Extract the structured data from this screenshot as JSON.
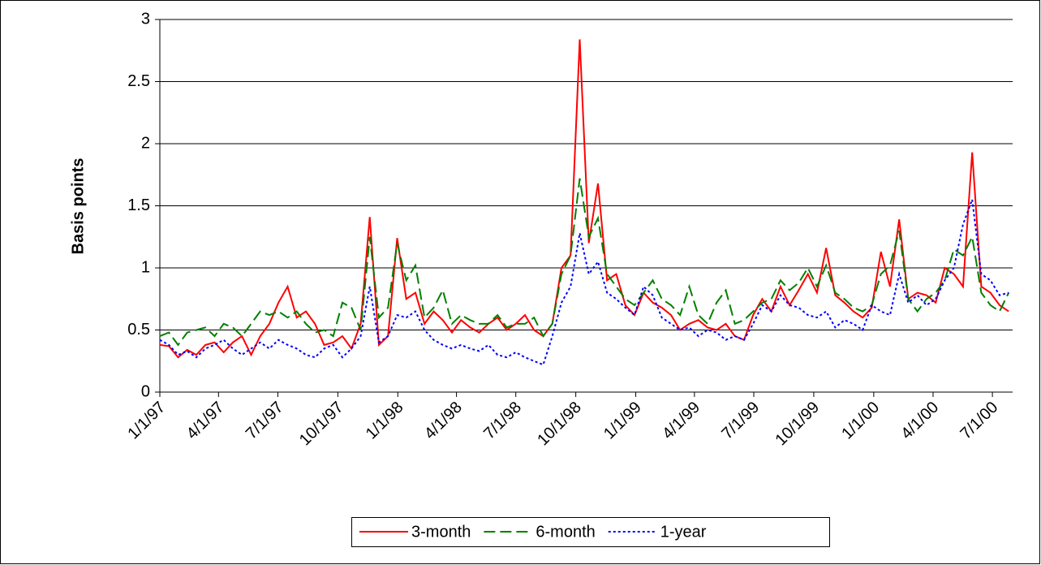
{
  "chart_data": {
    "type": "line",
    "y_label": "Basis points",
    "x": [
      "1/1/97",
      "1/15/97",
      "1/29/97",
      "2/12/97",
      "2/26/97",
      "3/12/97",
      "3/26/97",
      "4/9/97",
      "4/23/97",
      "5/7/97",
      "5/21/97",
      "6/4/97",
      "6/18/97",
      "7/2/97",
      "7/16/97",
      "7/30/97",
      "8/13/97",
      "8/27/97",
      "9/10/97",
      "9/24/97",
      "10/8/97",
      "10/22/97",
      "11/5/97",
      "11/19/97",
      "12/3/97",
      "12/17/97",
      "12/31/97",
      "1/14/98",
      "1/28/98",
      "2/11/98",
      "2/25/98",
      "3/11/98",
      "3/25/98",
      "4/8/98",
      "4/22/98",
      "5/6/98",
      "5/20/98",
      "6/3/98",
      "6/17/98",
      "7/1/98",
      "7/15/98",
      "7/29/98",
      "8/12/98",
      "8/26/98",
      "9/9/98",
      "9/23/98",
      "10/7/98",
      "10/21/98",
      "11/4/98",
      "11/18/98",
      "12/2/98",
      "12/16/98",
      "12/30/98",
      "1/13/99",
      "1/27/99",
      "2/10/99",
      "2/24/99",
      "3/10/99",
      "3/24/99",
      "4/7/99",
      "4/21/99",
      "5/5/99",
      "5/19/99",
      "6/2/99",
      "6/16/99",
      "6/30/99",
      "7/14/99",
      "7/28/99",
      "8/11/99",
      "8/25/99",
      "9/8/99",
      "9/22/99",
      "10/6/99",
      "10/20/99",
      "11/3/99",
      "11/17/99",
      "12/1/99",
      "12/15/99",
      "12/29/99",
      "1/12/00",
      "1/26/00",
      "2/9/00",
      "2/23/00",
      "3/8/00",
      "3/22/00",
      "4/5/00",
      "4/19/00",
      "5/3/00",
      "5/17/00",
      "5/31/00",
      "6/14/00",
      "6/28/00",
      "7/12/00",
      "7/26/00"
    ],
    "series": [
      {
        "name": "3-month",
        "color": "#ff0000",
        "style": "solid",
        "values": [
          0.38,
          0.37,
          0.28,
          0.34,
          0.3,
          0.38,
          0.4,
          0.32,
          0.4,
          0.45,
          0.3,
          0.45,
          0.55,
          0.72,
          0.85,
          0.6,
          0.65,
          0.55,
          0.38,
          0.4,
          0.45,
          0.35,
          0.55,
          1.41,
          0.38,
          0.45,
          1.24,
          0.75,
          0.8,
          0.55,
          0.65,
          0.58,
          0.48,
          0.58,
          0.52,
          0.48,
          0.55,
          0.6,
          0.5,
          0.55,
          0.62,
          0.5,
          0.45,
          0.55,
          1.0,
          1.1,
          2.84,
          1.2,
          1.68,
          0.9,
          0.95,
          0.7,
          0.62,
          0.8,
          0.72,
          0.68,
          0.62,
          0.5,
          0.55,
          0.58,
          0.52,
          0.5,
          0.55,
          0.45,
          0.42,
          0.62,
          0.75,
          0.65,
          0.85,
          0.7,
          0.82,
          0.95,
          0.8,
          1.16,
          0.78,
          0.72,
          0.65,
          0.6,
          0.68,
          1.13,
          0.85,
          1.39,
          0.75,
          0.8,
          0.78,
          0.72,
          1.0,
          0.95,
          0.85,
          1.93,
          0.85,
          0.8,
          0.7,
          0.65
        ]
      },
      {
        "name": "6-month",
        "color": "#008000",
        "style": "dashed",
        "values": [
          0.45,
          0.48,
          0.38,
          0.48,
          0.5,
          0.52,
          0.45,
          0.55,
          0.52,
          0.45,
          0.55,
          0.65,
          0.62,
          0.65,
          0.6,
          0.65,
          0.55,
          0.48,
          0.5,
          0.45,
          0.72,
          0.68,
          0.5,
          1.25,
          0.6,
          0.68,
          1.2,
          0.9,
          1.02,
          0.6,
          0.68,
          0.82,
          0.55,
          0.62,
          0.58,
          0.55,
          0.55,
          0.62,
          0.52,
          0.55,
          0.55,
          0.6,
          0.45,
          0.55,
          0.95,
          1.1,
          1.72,
          1.25,
          1.4,
          0.95,
          0.85,
          0.75,
          0.7,
          0.8,
          0.9,
          0.75,
          0.7,
          0.62,
          0.85,
          0.62,
          0.55,
          0.72,
          0.82,
          0.55,
          0.58,
          0.65,
          0.72,
          0.75,
          0.9,
          0.82,
          0.88,
          1.0,
          0.85,
          1.02,
          0.8,
          0.75,
          0.68,
          0.65,
          0.7,
          0.95,
          1.02,
          1.3,
          0.75,
          0.65,
          0.75,
          0.8,
          0.9,
          1.15,
          1.1,
          1.25,
          0.8,
          0.7,
          0.65,
          0.8
        ]
      },
      {
        "name": "1-year",
        "color": "#0000ff",
        "style": "dotted",
        "values": [
          0.42,
          0.38,
          0.3,
          0.33,
          0.28,
          0.35,
          0.38,
          0.42,
          0.35,
          0.3,
          0.35,
          0.4,
          0.35,
          0.42,
          0.38,
          0.35,
          0.3,
          0.28,
          0.35,
          0.38,
          0.28,
          0.35,
          0.45,
          0.85,
          0.4,
          0.45,
          0.62,
          0.6,
          0.65,
          0.5,
          0.42,
          0.38,
          0.35,
          0.38,
          0.35,
          0.33,
          0.38,
          0.3,
          0.28,
          0.32,
          0.28,
          0.25,
          0.22,
          0.45,
          0.72,
          0.85,
          1.28,
          0.95,
          1.05,
          0.8,
          0.75,
          0.68,
          0.62,
          0.85,
          0.78,
          0.6,
          0.55,
          0.5,
          0.52,
          0.45,
          0.5,
          0.48,
          0.42,
          0.45,
          0.42,
          0.55,
          0.7,
          0.65,
          0.78,
          0.7,
          0.68,
          0.62,
          0.6,
          0.65,
          0.52,
          0.58,
          0.55,
          0.5,
          0.7,
          0.65,
          0.62,
          0.95,
          0.72,
          0.78,
          0.7,
          0.75,
          0.9,
          1.0,
          1.35,
          1.55,
          0.95,
          0.9,
          0.78,
          0.8
        ]
      }
    ],
    "xlim": [
      "1/1/97",
      "8/1/00"
    ],
    "xticks": [
      "1/1/97",
      "4/1/97",
      "7/1/97",
      "10/1/97",
      "1/1/98",
      "4/1/98",
      "7/1/98",
      "10/1/98",
      "1/1/99",
      "4/1/99",
      "7/1/99",
      "10/1/99",
      "1/1/00",
      "4/1/00",
      "7/1/00"
    ],
    "ylim": [
      0,
      3
    ],
    "yticks": [
      0,
      0.5,
      1,
      1.5,
      2,
      2.5,
      3
    ],
    "grid": true,
    "legend": "bottom"
  }
}
